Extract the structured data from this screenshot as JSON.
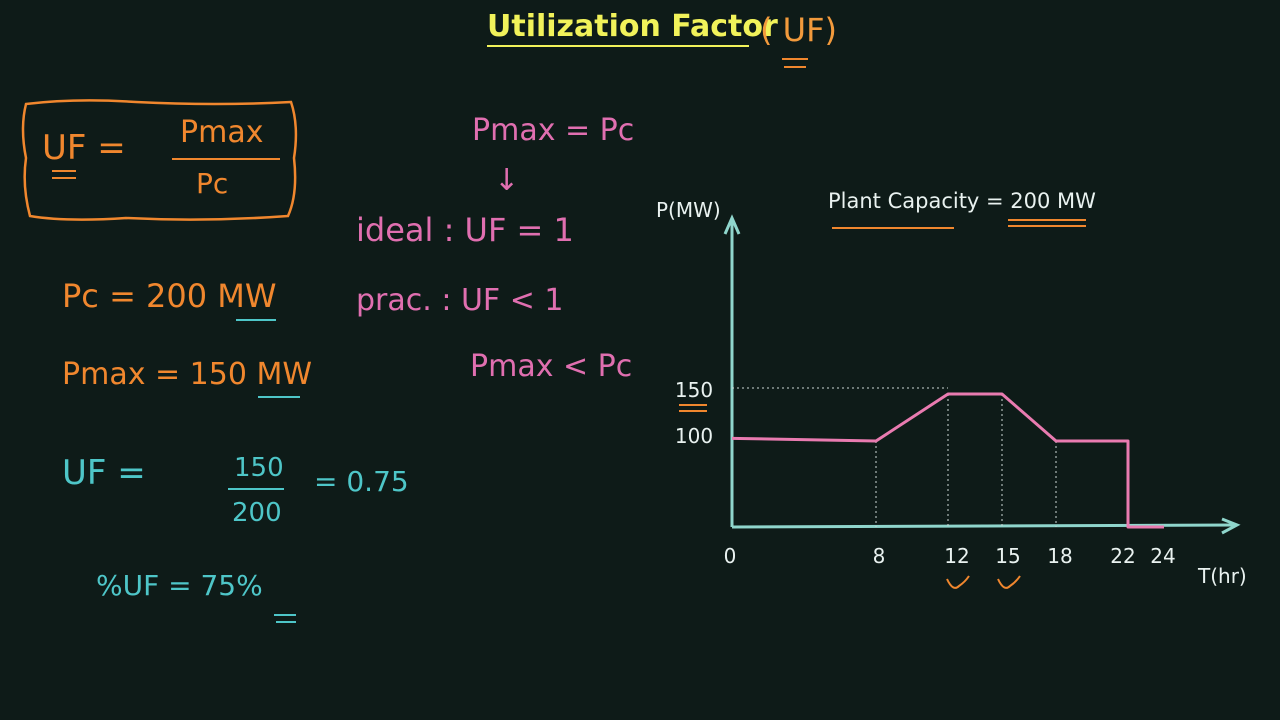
{
  "title": "Utilization Factor",
  "title_abbr": "( UF)",
  "left_notes": {
    "formula_lhs": "UF =",
    "formula_num": "Pmax",
    "formula_den": "Pc",
    "pc_line": "Pc = 200 MW",
    "pmax_line": "Pmax = 150 MW",
    "uf_lhs": "UF =",
    "uf_num": "150",
    "uf_den": "200",
    "uf_result": "= 0.75",
    "pct_line": "%UF = 75%"
  },
  "middle_notes": {
    "eq1": "Pmax = Pc",
    "arrow": "↓",
    "ideal": "ideal : UF = 1",
    "prac": "prac. : UF < 1",
    "ineq": "Pmax < Pc"
  },
  "colors": {
    "background": "#0e1b18",
    "title": "#f1f25a",
    "orange": "#f0872e",
    "pink": "#e06fb0",
    "cyan": "#4ec6c8",
    "axis": "#8fd6cc",
    "curve": "#e97bb0"
  },
  "chart_data": {
    "type": "line",
    "annotation": "Plant Capacity = 200 MW",
    "ylabel": "P(MW)",
    "xlabel": "T(hr)",
    "x_ticks": [
      0,
      8,
      12,
      15,
      18,
      22,
      24
    ],
    "y_ticks": [
      100,
      150
    ],
    "xlim": [
      0,
      24
    ],
    "ylim": [
      0,
      200
    ],
    "series": [
      {
        "x": [
          0,
          8,
          12,
          15,
          18,
          22,
          22,
          24
        ],
        "y": [
          100,
          97,
          150,
          150,
          97,
          97,
          0,
          0
        ]
      }
    ],
    "reference_lines": {
      "y": 150,
      "x": [
        8,
        12,
        15,
        18
      ]
    }
  }
}
